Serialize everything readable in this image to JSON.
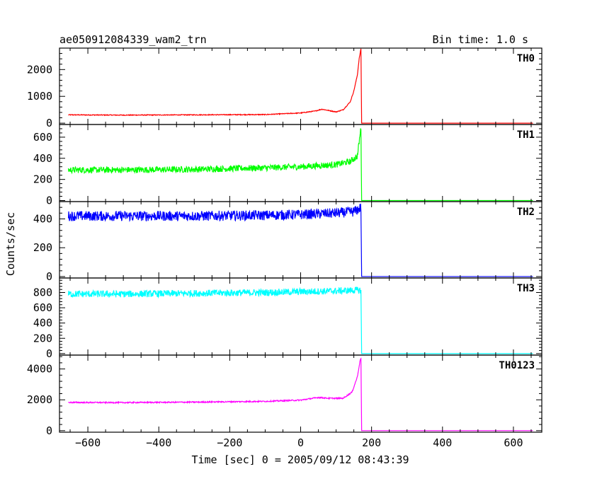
{
  "chart_data": {
    "type": "line",
    "title": "ae050912084339_wam2_trn",
    "subtitle": "Bin time: 1.0 s",
    "xlabel": "Time [sec] 0 = 2005/09/12 08:43:39",
    "ylabel": "Counts/sec",
    "xlim": [
      -680,
      680
    ],
    "x_ticks": [
      -600,
      -400,
      -200,
      0,
      200,
      400,
      600
    ],
    "x_tick_labels": [
      "−600",
      "−400",
      "−200",
      "0",
      "200",
      "400",
      "600"
    ],
    "panels": [
      {
        "name": "TH0",
        "color": "#ff0000",
        "ylim": [
          -50,
          2800
        ],
        "y_ticks": [
          0,
          1000,
          2000
        ],
        "y_tick_labels": [
          "0",
          "1000",
          "2000"
        ],
        "series": {
          "x": [
            -655,
            -500,
            -300,
            -100,
            0,
            40,
            60,
            80,
            100,
            120,
            140,
            150,
            160,
            165,
            170,
            172,
            175,
            400,
            655
          ],
          "y": [
            310,
            300,
            310,
            320,
            380,
            450,
            520,
            470,
            420,
            500,
            800,
            1200,
            1800,
            2400,
            2780,
            0,
            0,
            0,
            0
          ],
          "noise": 15
        }
      },
      {
        "name": "TH1",
        "color": "#00ff00",
        "ylim": [
          -10,
          720
        ],
        "y_ticks": [
          0,
          200,
          400,
          600
        ],
        "y_tick_labels": [
          "0",
          "200",
          "400",
          "600"
        ],
        "series": {
          "x": [
            -655,
            -500,
            -300,
            -100,
            0,
            100,
            140,
            160,
            170,
            172,
            175,
            400,
            655
          ],
          "y": [
            290,
            290,
            295,
            310,
            320,
            340,
            370,
            420,
            690,
            0,
            0,
            0,
            0
          ],
          "noise": 30
        }
      },
      {
        "name": "TH2",
        "color": "#0000ff",
        "ylim": [
          -10,
          520
        ],
        "y_ticks": [
          0,
          200,
          400
        ],
        "y_tick_labels": [
          "0",
          "200",
          "400"
        ],
        "series": {
          "x": [
            -655,
            -500,
            -300,
            -100,
            0,
            100,
            150,
            165,
            170,
            172,
            175,
            400,
            655
          ],
          "y": [
            420,
            420,
            420,
            425,
            430,
            440,
            450,
            470,
            480,
            0,
            0,
            0,
            0
          ],
          "noise": 35
        }
      },
      {
        "name": "TH3",
        "color": "#00ffff",
        "ylim": [
          -20,
          990
        ],
        "y_ticks": [
          0,
          200,
          400,
          600,
          800
        ],
        "y_tick_labels": [
          "0",
          "200",
          "400",
          "600",
          "800"
        ],
        "series": {
          "x": [
            -655,
            -500,
            -300,
            -100,
            0,
            100,
            160,
            170,
            172,
            175,
            400,
            655
          ],
          "y": [
            780,
            780,
            790,
            800,
            810,
            820,
            830,
            830,
            0,
            0,
            0,
            0
          ],
          "noise": 45
        }
      },
      {
        "name": "TH0123",
        "color": "#ff00ff",
        "ylim": [
          -100,
          4900
        ],
        "y_ticks": [
          0,
          2000,
          4000
        ],
        "y_tick_labels": [
          "0",
          "2000",
          "4000"
        ],
        "series": {
          "x": [
            -655,
            -500,
            -300,
            -100,
            0,
            50,
            80,
            120,
            145,
            160,
            168,
            170,
            172,
            175,
            400,
            655
          ],
          "y": [
            1830,
            1820,
            1850,
            1900,
            1980,
            2150,
            2100,
            2100,
            2500,
            3500,
            4600,
            4700,
            0,
            0,
            0,
            0
          ],
          "noise": 40
        }
      }
    ]
  }
}
